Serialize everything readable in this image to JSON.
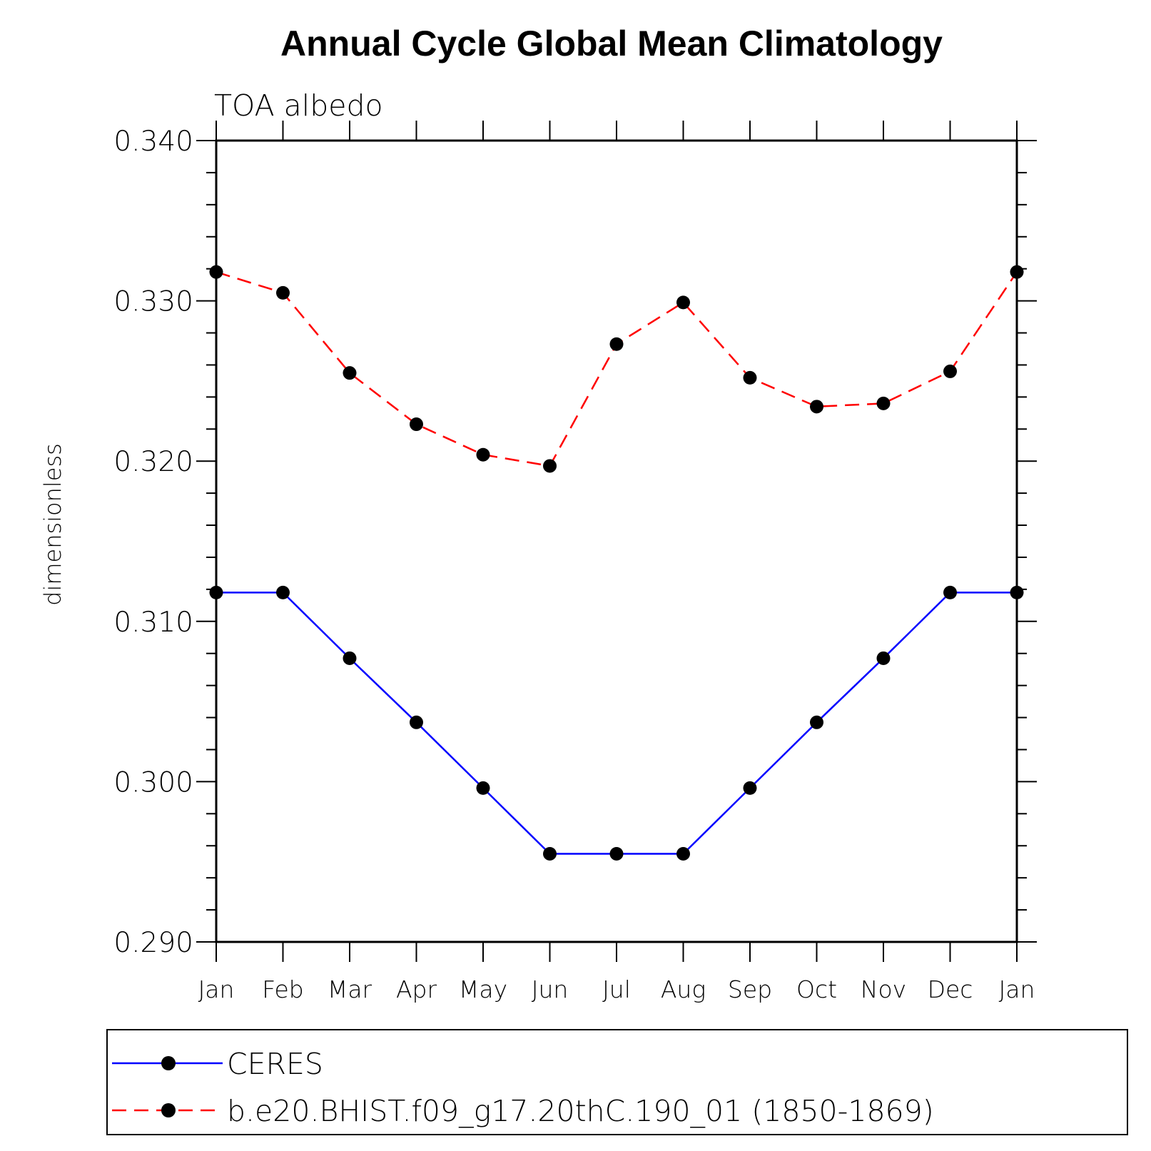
{
  "chart_data": {
    "type": "line",
    "title": "Annual Cycle Global Mean Climatology",
    "subtitle": "TOA albedo",
    "ylabel": "dimensionless",
    "xlabel": "",
    "categories": [
      "Jan",
      "Feb",
      "Mar",
      "Apr",
      "May",
      "Jun",
      "Jul",
      "Aug",
      "Sep",
      "Oct",
      "Nov",
      "Dec",
      "Jan"
    ],
    "ylim": [
      0.29,
      0.34
    ],
    "yticks": [
      0.29,
      0.3,
      0.31,
      0.32,
      0.33,
      0.34
    ],
    "ytick_labels": [
      "0.290",
      "0.300",
      "0.310",
      "0.320",
      "0.330",
      "0.340"
    ],
    "series": [
      {
        "name": "CERES",
        "color": "#0000ff",
        "dash": "solid",
        "values": [
          0.3118,
          0.3118,
          0.3077,
          0.3037,
          0.2996,
          0.2955,
          0.2955,
          0.2955,
          0.2996,
          0.3037,
          0.3077,
          0.3118,
          0.3118
        ]
      },
      {
        "name": "b.e20.BHIST.f09_g17.20thC.190_01 (1850-1869)",
        "color": "#ff0000",
        "dash": "dashed",
        "values": [
          0.3318,
          0.3305,
          0.3255,
          0.3223,
          0.3204,
          0.3197,
          0.3273,
          0.3299,
          0.3252,
          0.3234,
          0.3236,
          0.3256,
          0.3318
        ]
      }
    ],
    "legend_position": "bottom"
  }
}
